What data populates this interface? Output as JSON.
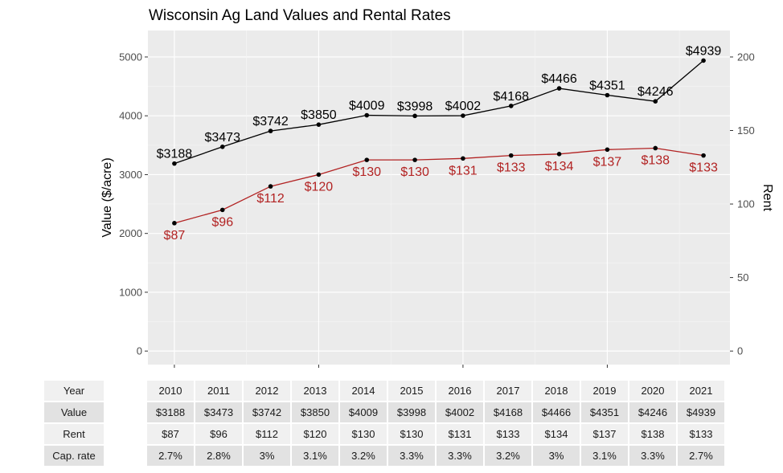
{
  "chart_data": {
    "type": "line",
    "title": "Wisconsin Ag Land Values and Rental Rates",
    "xlabel": "",
    "ylabel": "Value ($/acre)",
    "y2label": "Rent",
    "x": [
      2010,
      2011,
      2012,
      2013,
      2014,
      2015,
      2016,
      2017,
      2018,
      2019,
      2020,
      2021
    ],
    "ylim": [
      -230,
      5450
    ],
    "y2lim": [
      -9.2,
      218
    ],
    "yticks": [
      0,
      1000,
      2000,
      3000,
      4000,
      5000
    ],
    "y2ticks": [
      0,
      50,
      100,
      150,
      200
    ],
    "grid": true,
    "series": [
      {
        "name": "Value",
        "axis": "left",
        "color": "#000000",
        "values": [
          3188,
          3473,
          3742,
          3850,
          4009,
          3998,
          4002,
          4168,
          4466,
          4351,
          4246,
          4939
        ],
        "labels": [
          "$3188",
          "$3473",
          "$3742",
          "$3850",
          "$4009",
          "$3998",
          "$4002",
          "$4168",
          "$4466",
          "$4351",
          "$4246",
          "$4939"
        ]
      },
      {
        "name": "Rent",
        "axis": "right",
        "color": "#b22222",
        "values": [
          87,
          96,
          112,
          120,
          130,
          130,
          131,
          133,
          134,
          137,
          138,
          133
        ],
        "labels": [
          "$87",
          "$96",
          "$112",
          "$120",
          "$130",
          "$130",
          "$131",
          "$133",
          "$134",
          "$137",
          "$138",
          "$133"
        ]
      }
    ]
  },
  "table": {
    "rows": [
      {
        "label": "Year",
        "cells": [
          "2010",
          "2011",
          "2012",
          "2013",
          "2014",
          "2015",
          "2016",
          "2017",
          "2018",
          "2019",
          "2020",
          "2021"
        ]
      },
      {
        "label": "Value",
        "cells": [
          "$3188",
          "$3473",
          "$3742",
          "$3850",
          "$4009",
          "$3998",
          "$4002",
          "$4168",
          "$4466",
          "$4351",
          "$4246",
          "$4939"
        ]
      },
      {
        "label": "Rent",
        "cells": [
          "$87",
          "$96",
          "$112",
          "$120",
          "$130",
          "$130",
          "$131",
          "$133",
          "$134",
          "$137",
          "$138",
          "$133"
        ]
      },
      {
        "label": "Cap. rate",
        "cells": [
          "2.7%",
          "2.8%",
          "3%",
          "3.1%",
          "3.2%",
          "3.3%",
          "3.3%",
          "3.2%",
          "3%",
          "3.1%",
          "3.3%",
          "2.7%"
        ]
      }
    ]
  }
}
